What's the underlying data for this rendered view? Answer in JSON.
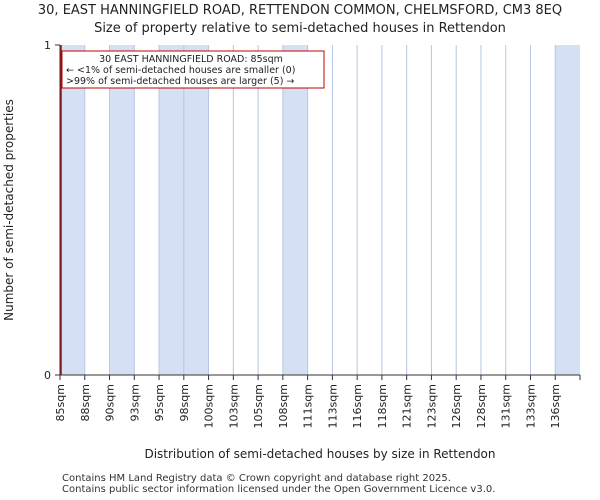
{
  "header": {
    "title_line1": "30, EAST HANNINGFIELD ROAD, RETTENDON COMMON, CHELMSFORD, CM3 8EQ",
    "title_line2": "Size of property relative to semi-detached houses in Rettendon"
  },
  "footer": {
    "line1": "Contains HM Land Registry data © Crown copyright and database right 2025.",
    "line2": "Contains public sector information licensed under the Open Government Licence v3.0."
  },
  "colors": {
    "bar_fill": "#d6e0f4",
    "bar_stroke": "#4472c4",
    "marker": "#c00000",
    "grid": "#b4c6e7"
  },
  "chart_data": {
    "type": "bar",
    "title": "30, EAST HANNINGFIELD ROAD, RETTENDON COMMON, CHELMSFORD, CM3 8EQ",
    "subtitle": "Size of property relative to semi-detached houses in Rettendon",
    "xlabel": "Distribution of semi-detached houses by size in Rettendon",
    "ylabel": "Number of semi-detached properties",
    "categories": [
      "85sqm",
      "88sqm",
      "90sqm",
      "93sqm",
      "95sqm",
      "98sqm",
      "100sqm",
      "103sqm",
      "105sqm",
      "108sqm",
      "111sqm",
      "113sqm",
      "116sqm",
      "118sqm",
      "121sqm",
      "123sqm",
      "126sqm",
      "128sqm",
      "131sqm",
      "133sqm",
      "136sqm"
    ],
    "values": [
      1,
      0,
      1,
      0,
      1,
      1,
      0,
      0,
      0,
      1,
      0,
      0,
      0,
      0,
      0,
      0,
      0,
      0,
      0,
      0,
      1
    ],
    "ylim": [
      0,
      1
    ],
    "yticks": [
      "0",
      "1"
    ],
    "grid": true,
    "marker": {
      "category": "85sqm"
    },
    "annotation": {
      "line1": "30 EAST HANNINGFIELD ROAD: 85sqm",
      "line2": "← <1% of semi-detached houses are smaller (0)",
      "line3": ">99% of semi-detached houses are larger (5) →"
    }
  }
}
